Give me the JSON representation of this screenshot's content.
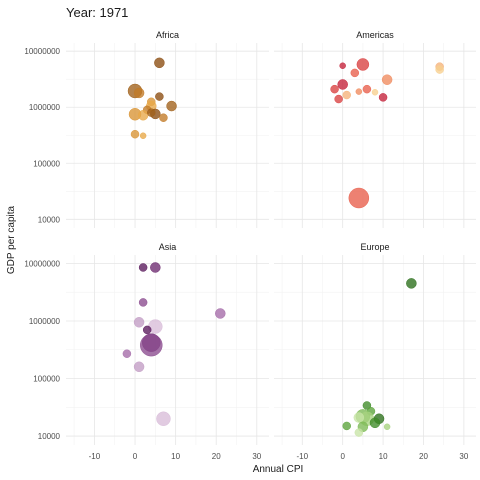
{
  "chart_data": {
    "type": "scatter",
    "title": "Year: 1971",
    "xlabel": "Annual CPI",
    "ylabel": "GDP per capita",
    "x_ticks": [
      -10,
      0,
      10,
      20,
      30
    ],
    "x_tick_labels": [
      "-10",
      "0",
      "10",
      "20",
      "30"
    ],
    "xlim": [
      -17,
      33
    ],
    "y_scale": "log",
    "y_ticks": [
      10000,
      100000,
      1000000,
      10000000
    ],
    "y_tick_labels": [
      "10000",
      "100000",
      "1000000",
      "10000000"
    ],
    "ylim": [
      7000,
      14000000
    ],
    "grid": true,
    "panels": [
      {
        "name": "Africa",
        "colors": [
          "#8b4c0f",
          "#a0601a",
          "#c17a26",
          "#d99433",
          "#e8a848"
        ],
        "points": [
          {
            "x": 6,
            "y": 6200000,
            "size": 5
          },
          {
            "x": 0,
            "y": 1950000,
            "size": 7
          },
          {
            "x": 1,
            "y": 1800000,
            "size": 5
          },
          {
            "x": 4,
            "y": 1250000,
            "size": 4
          },
          {
            "x": 4,
            "y": 1050000,
            "size": 5
          },
          {
            "x": 6,
            "y": 1550000,
            "size": 4
          },
          {
            "x": 9,
            "y": 1050000,
            "size": 5
          },
          {
            "x": 3,
            "y": 900000,
            "size": 4
          },
          {
            "x": 0,
            "y": 750000,
            "size": 6
          },
          {
            "x": 2,
            "y": 720000,
            "size": 5
          },
          {
            "x": 5,
            "y": 760000,
            "size": 5
          },
          {
            "x": 4,
            "y": 800000,
            "size": 4
          },
          {
            "x": 7,
            "y": 650000,
            "size": 4
          },
          {
            "x": 0,
            "y": 330000,
            "size": 4
          },
          {
            "x": 2,
            "y": 310000,
            "size": 3
          }
        ]
      },
      {
        "name": "Americas",
        "colors": [
          "#c4213a",
          "#d94040",
          "#e85d4a",
          "#f08a5d",
          "#f5b27a",
          "#f7cf8e"
        ],
        "points": [
          {
            "x": 0,
            "y": 5500000,
            "size": 3
          },
          {
            "x": 5,
            "y": 5800000,
            "size": 6
          },
          {
            "x": 3,
            "y": 4100000,
            "size": 4
          },
          {
            "x": 11,
            "y": 3100000,
            "size": 5
          },
          {
            "x": 24,
            "y": 5300000,
            "size": 4
          },
          {
            "x": 24,
            "y": 4700000,
            "size": 4
          },
          {
            "x": 0,
            "y": 2550000,
            "size": 5
          },
          {
            "x": -2,
            "y": 2100000,
            "size": 4
          },
          {
            "x": 6,
            "y": 2100000,
            "size": 4
          },
          {
            "x": 4,
            "y": 1900000,
            "size": 3
          },
          {
            "x": 1,
            "y": 1650000,
            "size": 4
          },
          {
            "x": 8,
            "y": 1850000,
            "size": 3
          },
          {
            "x": 10,
            "y": 1500000,
            "size": 4
          },
          {
            "x": -1,
            "y": 1400000,
            "size": 4
          },
          {
            "x": 4,
            "y": 24000,
            "size": 10
          }
        ]
      },
      {
        "name": "Asia",
        "colors": [
          "#5a1a5c",
          "#6d2a70",
          "#8a4a8e",
          "#a46aa8",
          "#c29cc4",
          "#d8bcd9"
        ],
        "points": [
          {
            "x": 2,
            "y": 8500000,
            "size": 4
          },
          {
            "x": 5,
            "y": 8500000,
            "size": 5
          },
          {
            "x": 2,
            "y": 2100000,
            "size": 4
          },
          {
            "x": 21,
            "y": 1350000,
            "size": 5
          },
          {
            "x": 1,
            "y": 950000,
            "size": 5
          },
          {
            "x": 5,
            "y": 800000,
            "size": 7
          },
          {
            "x": 3,
            "y": 700000,
            "size": 4
          },
          {
            "x": 4,
            "y": 420000,
            "size": 9
          },
          {
            "x": 4,
            "y": 380000,
            "size": 11
          },
          {
            "x": -2,
            "y": 270000,
            "size": 4
          },
          {
            "x": 1,
            "y": 160000,
            "size": 5
          },
          {
            "x": 7,
            "y": 20000,
            "size": 7
          }
        ]
      },
      {
        "name": "Europe",
        "colors": [
          "#2a6e1a",
          "#3d8a26",
          "#5aa33a",
          "#7cba55",
          "#a6d27f",
          "#c8e4a6"
        ],
        "points": [
          {
            "x": 17,
            "y": 4500000,
            "size": 5
          },
          {
            "x": 6,
            "y": 34000,
            "size": 4
          },
          {
            "x": 7,
            "y": 27000,
            "size": 4
          },
          {
            "x": 5,
            "y": 22000,
            "size": 7
          },
          {
            "x": 6,
            "y": 20000,
            "size": 7
          },
          {
            "x": 4,
            "y": 21000,
            "size": 5
          },
          {
            "x": 9,
            "y": 20000,
            "size": 5
          },
          {
            "x": 8,
            "y": 17000,
            "size": 5
          },
          {
            "x": 1,
            "y": 15000,
            "size": 4
          },
          {
            "x": 5,
            "y": 14500,
            "size": 5
          },
          {
            "x": 11,
            "y": 14500,
            "size": 3
          },
          {
            "x": 4,
            "y": 11500,
            "size": 4
          }
        ]
      }
    ]
  }
}
